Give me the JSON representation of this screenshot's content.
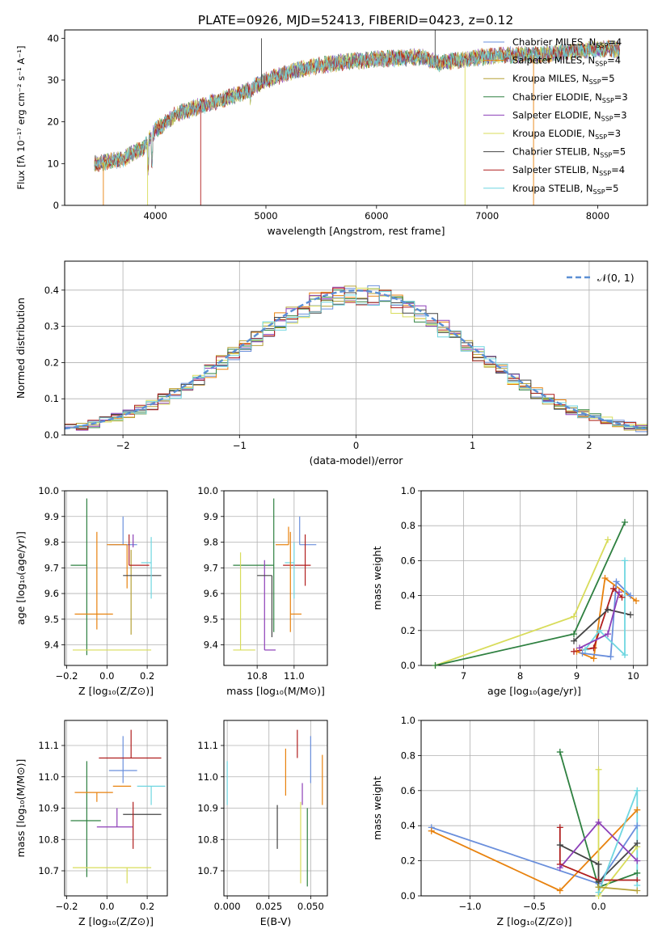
{
  "figure_title": "PLATE=0926, MJD=52413, FIBERID=0423, z=0.12",
  "models": [
    {
      "name": "Chabrier MILES",
      "nssp": "4",
      "color": "#6a8fdc"
    },
    {
      "name": "Salpeter MILES",
      "nssp": "4",
      "color": "#e8820e"
    },
    {
      "name": "Kroupa MILES",
      "nssp": "5",
      "color": "#b5a137"
    },
    {
      "name": "Chabrier ELODIE",
      "nssp": "3",
      "color": "#2e8040"
    },
    {
      "name": "Salpeter ELODIE",
      "nssp": "3",
      "color": "#8d3fb8"
    },
    {
      "name": "Kroupa ELODIE",
      "nssp": "3",
      "color": "#d8dc5a"
    },
    {
      "name": "Chabrier STELIB",
      "nssp": "5",
      "color": "#444444"
    },
    {
      "name": "Salpeter STELIB",
      "nssp": "4",
      "color": "#b01e1e"
    },
    {
      "name": "Kroupa STELIB",
      "nssp": "5",
      "color": "#6fd6e0"
    }
  ],
  "chart_data": [
    {
      "id": "spectrum",
      "type": "line",
      "xlabel": "wavelength [Angstrom, rest frame]",
      "ylabel": "Flux [fλ 10⁻¹⁷ erg cm⁻² s⁻¹ A⁻¹]",
      "xlim": [
        3180,
        8450
      ],
      "ylim": [
        0,
        42
      ],
      "xticks": [
        4000,
        5000,
        6000,
        7000,
        8000
      ],
      "yticks": [
        0,
        10,
        20,
        30,
        40
      ],
      "legend": "top-right",
      "continuum": [
        [
          3450,
          10
        ],
        [
          3700,
          11
        ],
        [
          3900,
          14
        ],
        [
          4000,
          18
        ],
        [
          4200,
          22
        ],
        [
          4500,
          24.5
        ],
        [
          4800,
          27
        ],
        [
          5000,
          30
        ],
        [
          5300,
          32.5
        ],
        [
          5600,
          34
        ],
        [
          6000,
          35
        ],
        [
          6400,
          35.5
        ],
        [
          6563,
          34
        ],
        [
          6800,
          35
        ],
        [
          7100,
          36
        ],
        [
          7500,
          36
        ],
        [
          7800,
          37
        ],
        [
          8100,
          37.5
        ],
        [
          8200,
          37
        ]
      ]
    },
    {
      "id": "residuals",
      "type": "line",
      "xlabel": "(data-model)/error",
      "ylabel": "Normed distribution",
      "xlim": [
        -2.5,
        2.5
      ],
      "ylim": [
        0,
        0.48
      ],
      "xticks": [
        -2,
        -1,
        0,
        1,
        2
      ],
      "yticks": [
        0.0,
        0.1,
        0.2,
        0.3,
        0.4
      ],
      "grid": true,
      "legend": "top-right",
      "gaussian_label": "𝒩(0, 1)",
      "gaussian_color": "#5b8fd4"
    },
    {
      "id": "age-vs-Z",
      "type": "scatter",
      "xlabel": "Z [log₁₀(Z/Z⊙)]",
      "ylabel": "age  [log₁₀(age/yr)]",
      "xlim": [
        -0.21,
        0.3
      ],
      "ylim": [
        9.32,
        10.0
      ],
      "xticks": [
        -0.2,
        0.0,
        0.2
      ],
      "yticks": [
        9.4,
        9.5,
        9.6,
        9.7,
        9.8,
        9.9,
        10.0
      ],
      "grid": true,
      "points": [
        {
          "model": 0,
          "x": 0.08,
          "xerr": [
            0.07,
            0.07
          ],
          "y": 9.79,
          "yerr": [
            0.0,
            0.11
          ]
        },
        {
          "model": 1,
          "x": 0.1,
          "xerr": [
            0.1,
            0.0
          ],
          "y": 9.79,
          "yerr": [
            0.17,
            0.0
          ]
        },
        {
          "model": 2,
          "x": 0.12,
          "xerr": [
            0.0,
            0.0
          ],
          "y": 9.77,
          "yerr": [
            0.33,
            0.0
          ]
        },
        {
          "model": 3,
          "x": -0.1,
          "xerr": [
            0.08,
            0.0
          ],
          "y": 9.71,
          "yerr": [
            0.35,
            0.26
          ]
        },
        {
          "model": 4,
          "x": 0.13,
          "xerr": [
            0.0,
            0.0
          ],
          "y": 9.78,
          "yerr": [
            0.0,
            0.05
          ]
        },
        {
          "model": 5,
          "x": 0.1,
          "xerr": [
            0.27,
            0.12
          ],
          "y": 9.38,
          "yerr": [
            0.0,
            0.0
          ]
        },
        {
          "model": 6,
          "x": 0.17,
          "xerr": [
            0.09,
            0.1
          ],
          "y": 9.67,
          "yerr": [
            0.0,
            0.0
          ]
        },
        {
          "model": 7,
          "x": 0.11,
          "xerr": [
            0.0,
            0.1
          ],
          "y": 9.71,
          "yerr": [
            0.0,
            0.12
          ]
        },
        {
          "model": 8,
          "x": 0.22,
          "xerr": [
            0.05,
            0.0
          ],
          "y": 9.72,
          "yerr": [
            0.14,
            0.1
          ]
        },
        {
          "model": 1,
          "x": -0.05,
          "xerr": [
            0.11,
            0.08
          ],
          "y": 9.52,
          "yerr": [
            0.06,
            0.32
          ]
        }
      ]
    },
    {
      "id": "age-vs-mass",
      "type": "scatter",
      "xlabel": "mass [log₁₀(M/M⊙)]",
      "ylabel": "",
      "xlim": [
        10.62,
        11.18
      ],
      "ylim": [
        9.32,
        10.0
      ],
      "xticks": [
        10.8,
        11.0
      ],
      "yticks": [
        9.4,
        9.5,
        9.6,
        9.7,
        9.8,
        9.9,
        10.0
      ],
      "grid": true,
      "points": [
        {
          "model": 0,
          "x": 11.03,
          "xerr": [
            0.0,
            0.09
          ],
          "y": 9.79,
          "yerr": [
            0.0,
            0.11
          ]
        },
        {
          "model": 1,
          "x": 10.97,
          "xerr": [
            0.07,
            0.0
          ],
          "y": 9.79,
          "yerr": [
            0.0,
            0.07
          ]
        },
        {
          "model": 3,
          "x": 10.89,
          "xerr": [
            0.22,
            0.0
          ],
          "y": 9.71,
          "yerr": [
            0.26,
            0.26
          ]
        },
        {
          "model": 4,
          "x": 10.84,
          "xerr": [
            0.0,
            0.06
          ],
          "y": 9.38,
          "yerr": [
            0.0,
            0.35
          ]
        },
        {
          "model": 5,
          "x": 10.71,
          "xerr": [
            0.04,
            0.08
          ],
          "y": 9.38,
          "yerr": [
            0.0,
            0.38
          ]
        },
        {
          "model": 6,
          "x": 10.88,
          "xerr": [
            0.08,
            0.0
          ],
          "y": 9.67,
          "yerr": [
            0.24,
            0.0
          ]
        },
        {
          "model": 7,
          "x": 11.06,
          "xerr": [
            0.12,
            0.03
          ],
          "y": 9.71,
          "yerr": [
            0.08,
            0.12
          ]
        },
        {
          "model": 8,
          "x": 11.0,
          "xerr": [
            0.05,
            0.0
          ],
          "y": 9.72,
          "yerr": [
            0.14,
            0.08
          ]
        },
        {
          "model": 1,
          "x": 10.98,
          "xerr": [
            0.0,
            0.06
          ],
          "y": 9.52,
          "yerr": [
            0.07,
            0.32
          ]
        }
      ]
    },
    {
      "id": "weight-vs-age",
      "type": "line",
      "xlabel": "age  [log₁₀(age/yr)]",
      "ylabel": "mass weight",
      "xlim": [
        6.25,
        10.25
      ],
      "ylim": [
        0.0,
        1.0
      ],
      "xticks": [
        7,
        8,
        9,
        10
      ],
      "yticks": [
        0.0,
        0.2,
        0.4,
        0.6,
        0.8,
        1.0
      ],
      "grid": true,
      "series": [
        {
          "model": 5,
          "points": [
            [
              6.5,
              0.0
            ],
            [
              8.95,
              0.28
            ],
            [
              9.55,
              0.72
            ]
          ]
        },
        {
          "model": 3,
          "points": [
            [
              6.5,
              0.0
            ],
            [
              8.95,
              0.18
            ],
            [
              9.85,
              0.82
            ]
          ]
        },
        {
          "model": 1,
          "points": [
            [
              9.0,
              0.08
            ],
            [
              9.3,
              0.04
            ],
            [
              9.5,
              0.5
            ],
            [
              10.05,
              0.37
            ]
          ]
        },
        {
          "model": 0,
          "points": [
            [
              9.1,
              0.07
            ],
            [
              9.6,
              0.05
            ],
            [
              9.7,
              0.48
            ],
            [
              9.95,
              0.4
            ]
          ]
        },
        {
          "model": 7,
          "points": [
            [
              8.95,
              0.08
            ],
            [
              9.3,
              0.1
            ],
            [
              9.65,
              0.44
            ],
            [
              9.8,
              0.39
            ]
          ]
        },
        {
          "model": 6,
          "points": [
            [
              8.95,
              0.14
            ],
            [
              9.55,
              0.32
            ],
            [
              9.95,
              0.29
            ]
          ]
        },
        {
          "model": 8,
          "points": [
            [
              9.15,
              0.09
            ],
            [
              9.4,
              0.2
            ],
            [
              9.85,
              0.06
            ],
            [
              9.85,
              0.6
            ]
          ]
        },
        {
          "model": 4,
          "points": [
            [
              9.05,
              0.1
            ],
            [
              9.55,
              0.18
            ],
            [
              9.75,
              0.42
            ]
          ]
        }
      ]
    },
    {
      "id": "mass-vs-Z",
      "type": "scatter",
      "xlabel": "Z [log₁₀(Z/Z⊙)]",
      "ylabel": "mass [log₁₀(M/M⊙)]",
      "xlim": [
        -0.21,
        0.3
      ],
      "ylim": [
        10.62,
        11.18
      ],
      "xticks": [
        -0.2,
        0.0,
        0.2
      ],
      "yticks": [
        10.7,
        10.8,
        10.9,
        11.0,
        11.1
      ],
      "grid": true,
      "points": [
        {
          "model": 0,
          "x": 0.08,
          "xerr": [
            0.07,
            0.07
          ],
          "y": 11.02,
          "yerr": [
            0.04,
            0.11
          ]
        },
        {
          "model": 1,
          "x": 0.12,
          "xerr": [
            0.09,
            0.0
          ],
          "y": 10.97,
          "yerr": [
            0.0,
            0.0
          ]
        },
        {
          "model": 3,
          "x": -0.1,
          "xerr": [
            0.08,
            0.07
          ],
          "y": 10.86,
          "yerr": [
            0.18,
            0.19
          ]
        },
        {
          "model": 4,
          "x": 0.05,
          "xerr": [
            0.1,
            0.08
          ],
          "y": 10.84,
          "yerr": [
            0.0,
            0.06
          ]
        },
        {
          "model": 5,
          "x": 0.1,
          "xerr": [
            0.27,
            0.12
          ],
          "y": 10.71,
          "yerr": [
            0.05,
            0.0
          ]
        },
        {
          "model": 6,
          "x": 0.17,
          "xerr": [
            0.09,
            0.1
          ],
          "y": 10.88,
          "yerr": [
            0.0,
            0.0
          ]
        },
        {
          "model": 7,
          "x": 0.12,
          "xerr": [
            0.16,
            0.15
          ],
          "y": 11.06,
          "yerr": [
            0.0,
            0.09
          ]
        },
        {
          "model": 8,
          "x": 0.22,
          "xerr": [
            0.07,
            0.07
          ],
          "y": 10.97,
          "yerr": [
            0.06,
            0.0
          ]
        },
        {
          "model": 1,
          "x": -0.05,
          "xerr": [
            0.11,
            0.08
          ],
          "y": 10.95,
          "yerr": [
            0.03,
            0.0
          ]
        },
        {
          "model": 7,
          "x": 0.13,
          "xerr": [
            0.0,
            0.0
          ],
          "y": 10.9,
          "yerr": [
            0.13,
            0.02
          ]
        }
      ]
    },
    {
      "id": "mass-vs-ebv",
      "type": "scatter",
      "xlabel": "E(B-V)",
      "ylabel": "",
      "xlim": [
        -0.002,
        0.06
      ],
      "ylim": [
        10.62,
        11.18
      ],
      "xticks": [
        0.0,
        0.025,
        0.05
      ],
      "yticks": [
        10.7,
        10.8,
        10.9,
        11.0,
        11.1
      ],
      "grid": true,
      "points": [
        {
          "model": 8,
          "x": 0.0,
          "xerr": [
            0.0,
            0.0
          ],
          "y": 11.0,
          "yerr": [
            0.09,
            0.05
          ]
        },
        {
          "model": 6,
          "x": 0.03,
          "xerr": [
            0.0,
            0.0
          ],
          "y": 10.84,
          "yerr": [
            0.07,
            0.07
          ]
        },
        {
          "model": 1,
          "x": 0.035,
          "xerr": [
            0.0,
            0.0
          ],
          "y": 11.0,
          "yerr": [
            0.06,
            0.09
          ]
        },
        {
          "model": 7,
          "x": 0.042,
          "xerr": [
            0.0,
            0.0
          ],
          "y": 11.1,
          "yerr": [
            0.04,
            0.05
          ]
        },
        {
          "model": 5,
          "x": 0.044,
          "xerr": [
            0.0,
            0.0
          ],
          "y": 10.8,
          "yerr": [
            0.14,
            0.12
          ]
        },
        {
          "model": 4,
          "x": 0.045,
          "xerr": [
            0.0,
            0.0
          ],
          "y": 10.95,
          "yerr": [
            0.04,
            0.03
          ]
        },
        {
          "model": 3,
          "x": 0.048,
          "xerr": [
            0.0,
            0.0
          ],
          "y": 10.8,
          "yerr": [
            0.15,
            0.1
          ]
        },
        {
          "model": 0,
          "x": 0.05,
          "xerr": [
            0.0,
            0.0
          ],
          "y": 11.03,
          "yerr": [
            0.05,
            0.1
          ]
        },
        {
          "model": 2,
          "x": 0.051,
          "xerr": [
            0.0,
            0.0
          ],
          "y": 10.97,
          "yerr": [
            0.0,
            0.0
          ]
        },
        {
          "model": 1,
          "x": 0.057,
          "xerr": [
            0.0,
            0.0
          ],
          "y": 10.99,
          "yerr": [
            0.08,
            0.08
          ]
        }
      ]
    },
    {
      "id": "weight-vs-Z",
      "type": "line",
      "xlabel": "Z [log₁₀(Z/Z⊙)]",
      "ylabel": "mass weight",
      "xlim": [
        -1.38,
        0.38
      ],
      "ylim": [
        0.0,
        1.0
      ],
      "xticks": [
        -1.0,
        -0.5,
        0.0
      ],
      "yticks": [
        0.0,
        0.2,
        0.4,
        0.6,
        0.8,
        1.0
      ],
      "grid": true,
      "series": [
        {
          "model": 0,
          "points": [
            [
              -1.3,
              0.39
            ],
            [
              -0.0,
              0.07
            ],
            [
              0.3,
              0.4
            ]
          ]
        },
        {
          "model": 1,
          "points": [
            [
              -1.3,
              0.37
            ],
            [
              -0.3,
              0.03
            ],
            [
              0.3,
              0.49
            ]
          ]
        },
        {
          "model": 3,
          "points": [
            [
              -0.3,
              0.82
            ],
            [
              0.0,
              0.05
            ],
            [
              0.3,
              0.13
            ]
          ]
        },
        {
          "model": 5,
          "points": [
            [
              0.0,
              0.72
            ],
            [
              0.0,
              0.0
            ],
            [
              0.3,
              0.28
            ]
          ]
        },
        {
          "model": 7,
          "points": [
            [
              -0.3,
              0.39
            ],
            [
              -0.3,
              0.18
            ],
            [
              0.0,
              0.09
            ],
            [
              0.3,
              0.09
            ]
          ]
        },
        {
          "model": 6,
          "points": [
            [
              -0.3,
              0.29
            ],
            [
              0.0,
              0.18
            ],
            [
              0.0,
              0.08
            ],
            [
              0.3,
              0.3
            ]
          ]
        },
        {
          "model": 4,
          "points": [
            [
              -0.3,
              0.16
            ],
            [
              0.0,
              0.42
            ],
            [
              0.3,
              0.2
            ]
          ]
        },
        {
          "model": 8,
          "points": [
            [
              0.0,
              0.02
            ],
            [
              0.3,
              0.6
            ],
            [
              0.3,
              0.06
            ]
          ]
        },
        {
          "model": 2,
          "points": [
            [
              0.0,
              0.05
            ],
            [
              0.3,
              0.03
            ]
          ]
        }
      ]
    }
  ]
}
